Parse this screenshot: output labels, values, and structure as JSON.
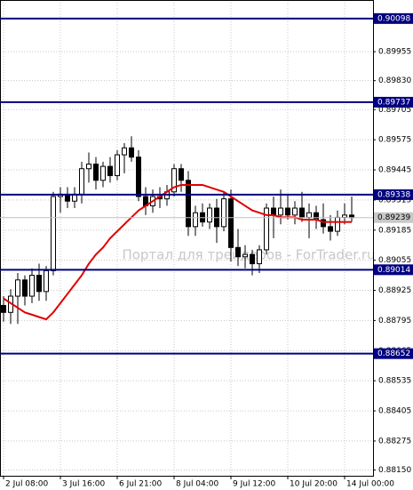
{
  "chart_data": {
    "type": "candlestick",
    "watermark": "Портал для трейдеров - ForTrader.ru",
    "x": [
      "2 Jul 08:00",
      null,
      null,
      null,
      null,
      null,
      null,
      null,
      "3 Jul 16:00",
      null,
      null,
      null,
      null,
      null,
      null,
      null,
      "6 Jul 21:00",
      null,
      null,
      null,
      null,
      null,
      null,
      null,
      "8 Jul 04:00",
      null,
      null,
      null,
      null,
      null,
      null,
      null,
      "9 Jul 12:00",
      null,
      null,
      null,
      null,
      null,
      null,
      null,
      "10 Jul 20:00",
      null,
      null,
      null,
      null,
      null,
      null,
      null,
      "14 Jul 00:00",
      null
    ],
    "open": [
      0.8886,
      0.8883,
      0.889,
      0.8897,
      0.889,
      0.8899,
      0.8892,
      0.8901,
      0.8933,
      0.8934,
      0.8931,
      0.8934,
      0.8945,
      0.8947,
      0.894,
      0.8946,
      0.8942,
      0.8951,
      0.8954,
      0.895,
      0.8933,
      0.8929,
      0.8933,
      0.8932,
      0.8935,
      0.8945,
      0.894,
      0.892,
      0.8926,
      0.8922,
      0.8928,
      0.892,
      0.8932,
      0.8911,
      0.8907,
      0.8908,
      0.8904,
      0.891,
      0.8928,
      0.8925,
      0.8928,
      0.8925,
      0.8928,
      0.8924,
      0.8926,
      0.8923,
      0.892,
      0.8918,
      0.8924,
      0.8925
    ],
    "high": [
      0.889,
      0.8893,
      0.89,
      0.8899,
      0.8902,
      0.8904,
      0.8903,
      0.8935,
      0.8937,
      0.8937,
      0.8937,
      0.8948,
      0.8952,
      0.895,
      0.8948,
      0.895,
      0.8953,
      0.8956,
      0.8959,
      0.8953,
      0.8937,
      0.8936,
      0.8937,
      0.8938,
      0.8947,
      0.8947,
      0.8944,
      0.8929,
      0.893,
      0.893,
      0.8932,
      0.8935,
      0.8936,
      0.8919,
      0.8912,
      0.891,
      0.8912,
      0.893,
      0.8933,
      0.8936,
      0.8934,
      0.8931,
      0.8935,
      0.893,
      0.8929,
      0.893,
      0.8925,
      0.8927,
      0.893,
      0.8933
    ],
    "low": [
      0.8879,
      0.8878,
      0.8878,
      0.8886,
      0.8887,
      0.8888,
      0.8888,
      0.8899,
      0.8926,
      0.8928,
      0.8928,
      0.893,
      0.8939,
      0.8936,
      0.8937,
      0.8939,
      0.894,
      0.8943,
      0.8948,
      0.8931,
      0.8925,
      0.8926,
      0.8928,
      0.8929,
      0.8933,
      0.8935,
      0.8916,
      0.8916,
      0.892,
      0.8919,
      0.8913,
      0.8918,
      0.8905,
      0.8903,
      0.8902,
      0.8899,
      0.89,
      0.8908,
      0.8915,
      0.8921,
      0.8923,
      0.8921,
      0.8922,
      0.8915,
      0.8919,
      0.8917,
      0.8914,
      0.8916,
      0.8921,
      0.8922
    ],
    "close": [
      0.8883,
      0.889,
      0.8897,
      0.889,
      0.8899,
      0.8892,
      0.8901,
      0.8933,
      0.8934,
      0.8931,
      0.8934,
      0.8945,
      0.8947,
      0.894,
      0.8946,
      0.8942,
      0.8951,
      0.8954,
      0.895,
      0.8933,
      0.8929,
      0.8933,
      0.8932,
      0.8935,
      0.8945,
      0.894,
      0.892,
      0.8926,
      0.8922,
      0.8928,
      0.892,
      0.8932,
      0.8911,
      0.8907,
      0.8908,
      0.8904,
      0.891,
      0.8928,
      0.8925,
      0.8928,
      0.8925,
      0.8928,
      0.8924,
      0.8926,
      0.8923,
      0.892,
      0.8918,
      0.8924,
      0.8925,
      0.89239
    ],
    "ma": {
      "color": "#e00000",
      "values": [
        0.8889,
        0.8887,
        0.8885,
        0.8883,
        0.8882,
        0.8881,
        0.888,
        0.8883,
        0.8887,
        0.8891,
        0.8895,
        0.8899,
        0.8904,
        0.8908,
        0.8911,
        0.8915,
        0.8918,
        0.8921,
        0.8924,
        0.8927,
        0.8929,
        0.8931,
        0.8933,
        0.8935,
        0.8937,
        0.8938,
        0.8938,
        0.8938,
        0.8938,
        0.8937,
        0.8936,
        0.8935,
        0.8933,
        0.8931,
        0.8929,
        0.8927,
        0.8926,
        0.8925,
        0.8925,
        0.8924,
        0.8924,
        0.8924,
        0.8923,
        0.8923,
        0.8923,
        0.8922,
        0.8922,
        0.8922,
        0.8922,
        0.8922
      ]
    },
    "bull_color": "#ffffff",
    "bear_color": "#000000",
    "levels": [
      0.90098,
      0.89737,
      0.89338,
      0.89014,
      0.88652
    ],
    "level_color": "#000080",
    "current_price": 0.89239,
    "ylim": [
      0.88125,
      0.90178
    ],
    "yticks": [
      0.89955,
      {
        "value": 0.8983,
        "label": "0.89830"
      },
      {
        "value": 0.89705,
        "label": "0.89705"
      },
      0.89575,
      0.89445,
      0.89315,
      0.89185,
      0.89055,
      0.88925,
      0.88795,
      0.88665,
      0.88535,
      0.88405,
      0.88275,
      {
        "value": 0.8815,
        "label": "0.88150"
      }
    ],
    "grid": true
  }
}
